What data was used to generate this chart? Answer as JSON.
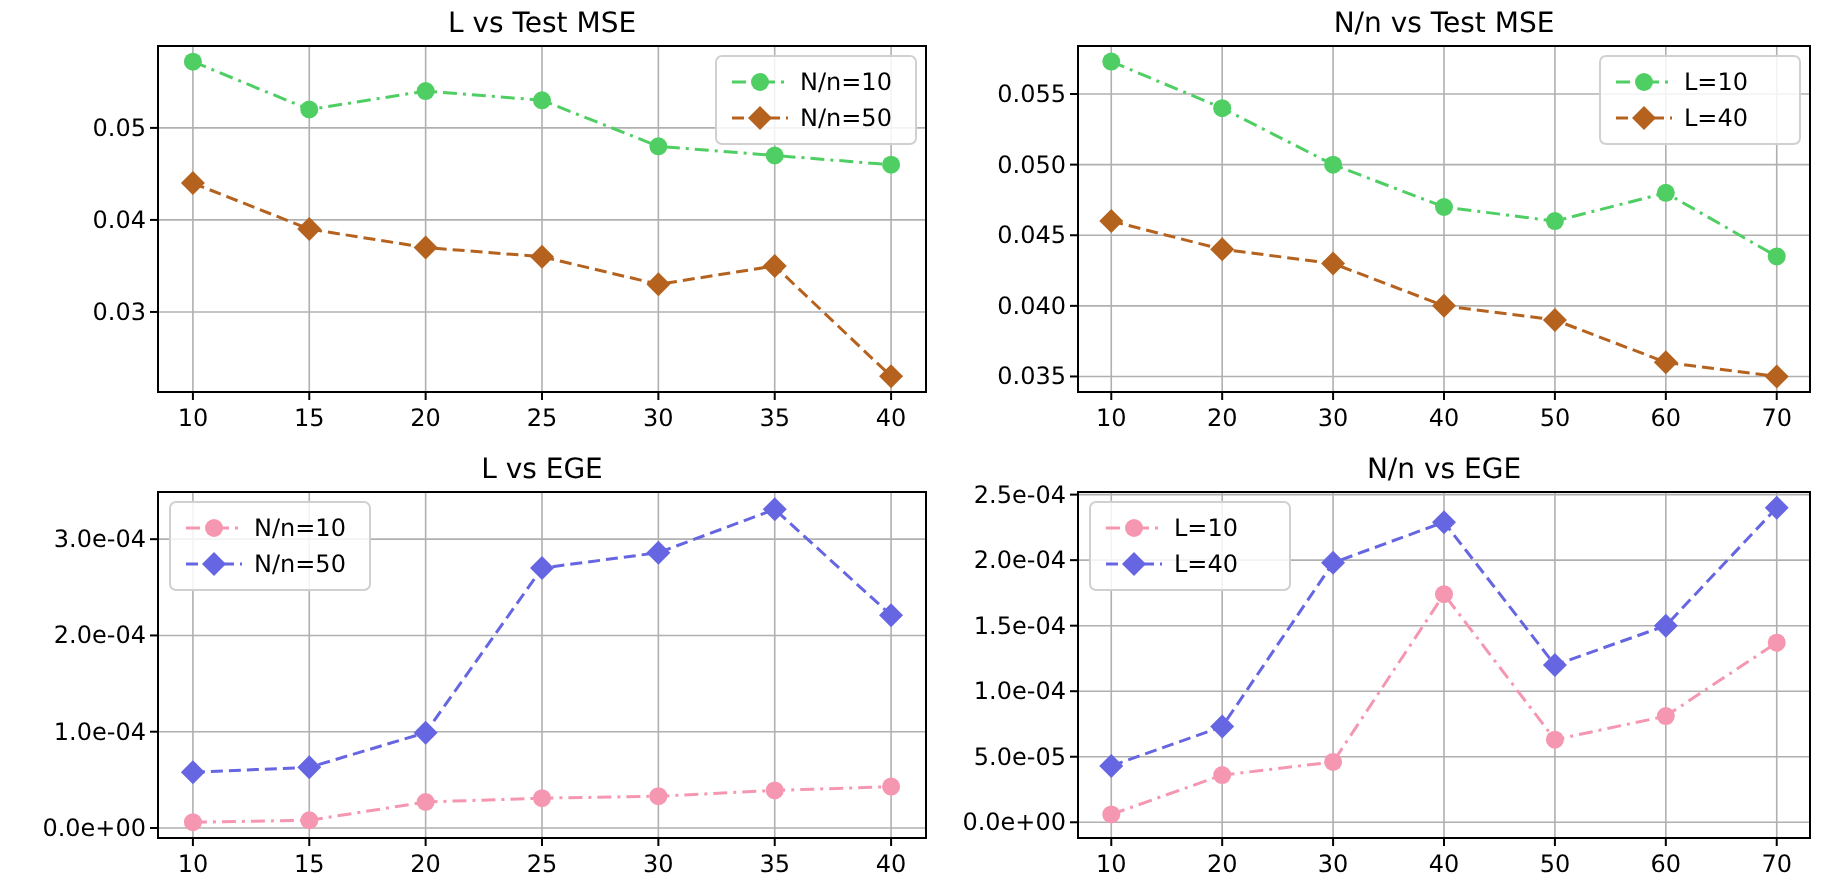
{
  "chart_data": [
    {
      "type": "line",
      "title": "L vs Test MSE",
      "x": [
        10,
        15,
        20,
        25,
        30,
        35,
        40
      ],
      "xlim": [
        8.5,
        41.5
      ],
      "xticks": [
        10,
        15,
        20,
        25,
        30,
        35,
        40
      ],
      "ylim": [
        0.0213,
        0.0589
      ],
      "yticks": [
        0.03,
        0.04,
        0.05
      ],
      "grid": true,
      "legend": "top right",
      "series": [
        {
          "name": "N/n=10",
          "color": "#4fcf63",
          "marker": "circle",
          "line_style": "dashdot",
          "values": [
            0.0572,
            0.052,
            0.054,
            0.053,
            0.048,
            0.047,
            0.046
          ]
        },
        {
          "name": "N/n=50",
          "color": "#b5621e",
          "marker": "diamond",
          "line_style": "dashed",
          "values": [
            0.044,
            0.039,
            0.037,
            0.036,
            0.033,
            0.035,
            0.023
          ]
        }
      ]
    },
    {
      "type": "line",
      "title": "N/n vs Test MSE",
      "x": [
        10,
        20,
        30,
        40,
        50,
        60,
        70
      ],
      "xlim": [
        7,
        73
      ],
      "xticks": [
        10,
        20,
        30,
        40,
        50,
        60,
        70
      ],
      "ylim": [
        0.0339,
        0.0584
      ],
      "yticks": [
        {
          "value": 0.035,
          "label": "0.035"
        },
        {
          "value": 0.04,
          "label": "0.040"
        },
        {
          "value": 0.045,
          "label": "0.045"
        },
        {
          "value": 0.05,
          "label": "0.050"
        },
        {
          "value": 0.055,
          "label": "0.055"
        }
      ],
      "grid": true,
      "legend": "top right",
      "series": [
        {
          "name": "L=10",
          "color": "#4fcf63",
          "marker": "circle",
          "line_style": "dashdot",
          "values": [
            0.0573,
            0.054,
            0.05,
            0.047,
            0.046,
            0.048,
            0.0435
          ]
        },
        {
          "name": "L=40",
          "color": "#b5621e",
          "marker": "diamond",
          "line_style": "dashed",
          "values": [
            0.046,
            0.044,
            0.043,
            0.04,
            0.039,
            0.036,
            0.035
          ]
        }
      ]
    },
    {
      "type": "line",
      "title": "L vs EGE",
      "x": [
        10,
        15,
        20,
        25,
        30,
        35,
        40
      ],
      "xlim": [
        8.5,
        41.5
      ],
      "xticks": [
        10,
        15,
        20,
        25,
        30,
        35,
        40
      ],
      "ylim": [
        -1.04e-05,
        0.000349
      ],
      "yticks": [
        {
          "value": 0,
          "label": "0.0e+00"
        },
        {
          "value": 0.0001,
          "label": "1.0e-04"
        },
        {
          "value": 0.0002,
          "label": "2.0e-04"
        },
        {
          "value": 0.0003,
          "label": "3.0e-04"
        }
      ],
      "grid": true,
      "legend": "top left",
      "series": [
        {
          "name": "N/n=10",
          "color": "#f697b2",
          "marker": "circle",
          "line_style": "dashdot",
          "values": [
            6e-06,
            8e-06,
            2.7e-05,
            3.1e-05,
            3.3e-05,
            3.9e-05,
            4.3e-05
          ]
        },
        {
          "name": "N/n=50",
          "color": "#6666e2",
          "marker": "diamond",
          "line_style": "dashed",
          "values": [
            5.8e-05,
            6.3e-05,
            9.9e-05,
            0.00027,
            0.000286,
            0.000331,
            0.000221
          ]
        }
      ]
    },
    {
      "type": "line",
      "title": "N/n vs EGE",
      "x": [
        10,
        20,
        30,
        40,
        50,
        60,
        70
      ],
      "xlim": [
        7,
        73
      ],
      "xticks": [
        10,
        20,
        30,
        40,
        50,
        60,
        70
      ],
      "ylim": [
        -1.2e-05,
        0.000252
      ],
      "yticks": [
        {
          "value": 0,
          "label": "0.0e+00"
        },
        {
          "value": 5e-05,
          "label": "5.0e-05"
        },
        {
          "value": 0.0001,
          "label": "1.0e-04"
        },
        {
          "value": 0.00015,
          "label": "1.5e-04"
        },
        {
          "value": 0.0002,
          "label": "2.0e-04"
        },
        {
          "value": 0.00025,
          "label": "2.5e-04"
        }
      ],
      "grid": true,
      "legend": "top left",
      "series": [
        {
          "name": "L=10",
          "color": "#f697b2",
          "marker": "circle",
          "line_style": "dashdot",
          "values": [
            6e-06,
            3.6e-05,
            4.6e-05,
            0.000174,
            6.3e-05,
            8.1e-05,
            0.000137
          ]
        },
        {
          "name": "L=40",
          "color": "#6666e2",
          "marker": "diamond",
          "line_style": "dashed",
          "values": [
            4.3e-05,
            7.3e-05,
            0.000198,
            0.000229,
            0.00012,
            0.00015,
            0.00024
          ]
        }
      ]
    }
  ]
}
